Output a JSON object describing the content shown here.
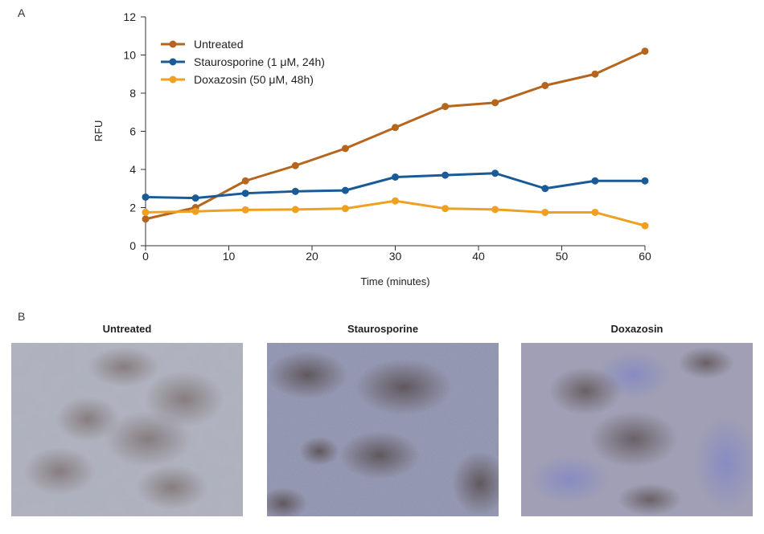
{
  "panels": {
    "a_label": "A",
    "b_label": "B"
  },
  "chart_data": {
    "type": "line",
    "title": "",
    "xlabel": "Time (minutes)",
    "ylabel": "RFU",
    "xlim": [
      0,
      60
    ],
    "ylim": [
      0,
      12
    ],
    "xticks": [
      0,
      10,
      20,
      30,
      40,
      50,
      60
    ],
    "yticks": [
      0,
      2,
      4,
      6,
      8,
      10,
      12
    ],
    "grid": false,
    "legend_position": "top-left",
    "x": [
      0,
      6,
      12,
      18,
      24,
      30,
      36,
      42,
      48,
      54,
      60
    ],
    "series": [
      {
        "name": "Untreated",
        "color": "#b5651d",
        "values": [
          1.4,
          2.0,
          3.4,
          4.2,
          5.1,
          6.2,
          7.3,
          7.5,
          8.4,
          9.0,
          10.2
        ]
      },
      {
        "name": "Staurosporine (1 μM, 24h)",
        "color": "#1a5a96",
        "values": [
          2.55,
          2.5,
          2.75,
          2.85,
          2.9,
          3.6,
          3.7,
          3.8,
          3.0,
          3.4,
          3.4
        ]
      },
      {
        "name": "Doxazosin (50 μM, 48h)",
        "color": "#f0a020",
        "values": [
          1.75,
          1.8,
          1.88,
          1.9,
          1.95,
          2.35,
          1.95,
          1.9,
          1.75,
          1.75,
          1.05
        ]
      }
    ]
  },
  "micrographs": [
    {
      "title": "Untreated",
      "style": "confluent-cells"
    },
    {
      "title": "Staurosporine",
      "style": "dense-granular"
    },
    {
      "title": "Doxazosin",
      "style": "sparse-patchy"
    }
  ]
}
